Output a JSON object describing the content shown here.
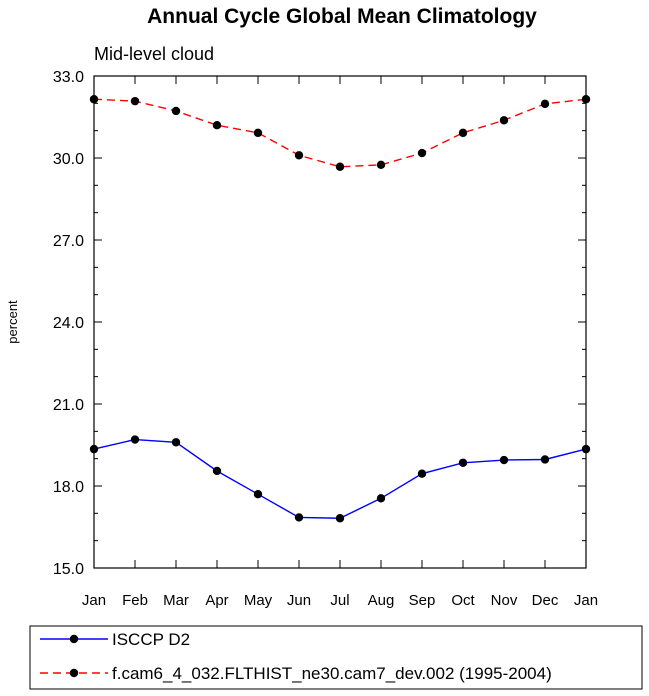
{
  "chart_data": {
    "type": "line",
    "title": "Annual Cycle Global Mean Climatology",
    "subtitle": "Mid-level cloud",
    "xlabel": "",
    "ylabel": "percent",
    "categories": [
      "Jan",
      "Feb",
      "Mar",
      "Apr",
      "May",
      "Jun",
      "Jul",
      "Aug",
      "Sep",
      "Oct",
      "Nov",
      "Dec",
      "Jan"
    ],
    "ylim": [
      15.0,
      33.0
    ],
    "yticks": [
      "15.0",
      "18.0",
      "21.0",
      "24.0",
      "27.0",
      "30.0",
      "33.0"
    ],
    "grid": false,
    "legend_position": "bottom",
    "series": [
      {
        "name": "ISCCP D2",
        "color": "#0000ff",
        "line_style": "solid",
        "values": [
          19.35,
          19.7,
          19.6,
          18.55,
          17.7,
          16.85,
          16.82,
          17.55,
          18.45,
          18.85,
          18.95,
          18.97,
          19.35
        ]
      },
      {
        "name": "f.cam6_4_032.FLTHIST_ne30.cam7_dev.002 (1995-2004)",
        "color": "#ff0000",
        "line_style": "dashed",
        "values": [
          32.15,
          32.08,
          31.72,
          31.2,
          30.92,
          30.1,
          29.68,
          29.75,
          30.18,
          30.92,
          31.38,
          31.98,
          32.15
        ]
      }
    ]
  }
}
